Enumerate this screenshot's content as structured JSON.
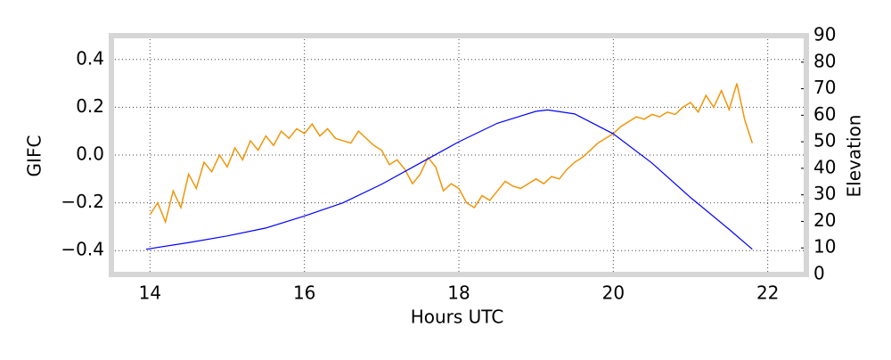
{
  "chart_data": {
    "type": "line",
    "xlabel": "Hours UTC",
    "ylabel": "GIFC",
    "y2label": "Elevation",
    "xlim": [
      13.5,
      22.5
    ],
    "xticks": [
      14,
      16,
      18,
      20,
      22
    ],
    "ylim": [
      -0.5,
      0.5
    ],
    "yticks": [
      {
        "value": -0.4,
        "label": "−0.4"
      },
      {
        "value": -0.2,
        "label": "−0.2"
      },
      {
        "value": 0,
        "label": "0.0"
      },
      {
        "value": 0.2,
        "label": "0.2"
      },
      {
        "value": 0.4,
        "label": "0.4"
      }
    ],
    "y2lim": [
      0,
      90
    ],
    "y2ticks": [
      0,
      10,
      20,
      30,
      40,
      50,
      60,
      70,
      80,
      90
    ],
    "grid": true,
    "series": [
      {
        "color": "#f0960a",
        "axis": "y",
        "x": [
          14.0,
          14.1,
          14.2,
          14.3,
          14.4,
          14.5,
          14.6,
          14.7,
          14.8,
          14.9,
          15.0,
          15.1,
          15.2,
          15.3,
          15.4,
          15.5,
          15.6,
          15.7,
          15.8,
          15.9,
          16.0,
          16.1,
          16.2,
          16.3,
          16.4,
          16.5,
          16.6,
          16.7,
          16.8,
          16.9,
          17.0,
          17.1,
          17.2,
          17.3,
          17.4,
          17.5,
          17.6,
          17.7,
          17.8,
          17.9,
          18.0,
          18.1,
          18.2,
          18.3,
          18.4,
          18.5,
          18.6,
          18.7,
          18.8,
          18.9,
          19.0,
          19.1,
          19.2,
          19.3,
          19.4,
          19.5,
          19.6,
          19.7,
          19.8,
          19.9,
          20.0,
          20.1,
          20.2,
          20.3,
          20.4,
          20.5,
          20.6,
          20.7,
          20.8,
          20.9,
          21.0,
          21.1,
          21.2,
          21.3,
          21.4,
          21.5,
          21.6,
          21.7,
          21.8
        ],
        "values": [
          -0.25,
          -0.2,
          -0.28,
          -0.15,
          -0.22,
          -0.08,
          -0.14,
          -0.03,
          -0.07,
          0.0,
          -0.05,
          0.03,
          -0.02,
          0.06,
          0.02,
          0.08,
          0.04,
          0.1,
          0.07,
          0.11,
          0.09,
          0.13,
          0.08,
          0.11,
          0.07,
          0.06,
          0.05,
          0.1,
          0.07,
          0.04,
          0.02,
          -0.04,
          -0.02,
          -0.06,
          -0.12,
          -0.08,
          -0.01,
          -0.05,
          -0.15,
          -0.12,
          -0.14,
          -0.2,
          -0.22,
          -0.17,
          -0.19,
          -0.15,
          -0.11,
          -0.13,
          -0.14,
          -0.12,
          -0.1,
          -0.12,
          -0.09,
          -0.1,
          -0.06,
          -0.03,
          -0.01,
          0.02,
          0.05,
          0.07,
          0.09,
          0.12,
          0.14,
          0.16,
          0.15,
          0.17,
          0.16,
          0.18,
          0.17,
          0.2,
          0.22,
          0.18,
          0.25,
          0.2,
          0.27,
          0.19,
          0.3,
          0.15,
          0.05
        ]
      },
      {
        "color": "#0000ff",
        "axis": "y2",
        "x": [
          13.95,
          14.5,
          15.0,
          15.5,
          16.0,
          16.5,
          17.0,
          17.5,
          18.0,
          18.5,
          19.0,
          19.15,
          19.5,
          20.0,
          20.5,
          21.0,
          21.5,
          21.8
        ],
        "values": [
          9.5,
          12,
          14.5,
          17.5,
          22,
          27,
          34,
          42,
          50,
          57,
          61.5,
          62,
          60.5,
          53,
          42,
          29,
          17,
          9.5
        ]
      }
    ]
  }
}
